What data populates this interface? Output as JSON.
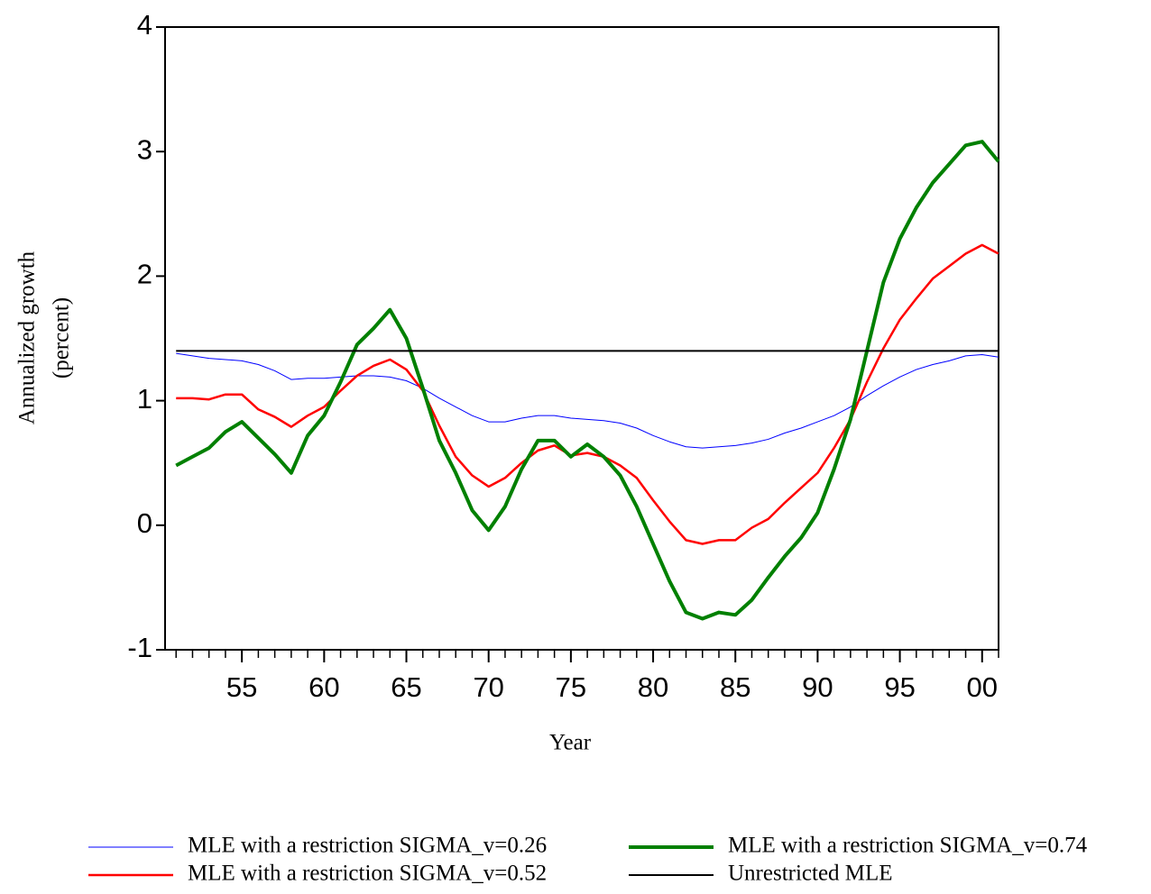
{
  "chart_data": {
    "type": "line",
    "x_label": "Year",
    "y_label": [
      "Annualized growth",
      "(percent)"
    ],
    "x": [
      1951,
      1952,
      1953,
      1954,
      1955,
      1956,
      1957,
      1958,
      1959,
      1960,
      1961,
      1962,
      1963,
      1964,
      1965,
      1966,
      1967,
      1968,
      1969,
      1970,
      1971,
      1972,
      1973,
      1974,
      1975,
      1976,
      1977,
      1978,
      1979,
      1980,
      1981,
      1982,
      1983,
      1984,
      1985,
      1986,
      1987,
      1988,
      1989,
      1990,
      1991,
      1992,
      1993,
      1994,
      1995,
      1996,
      1997,
      1998,
      1999,
      2000,
      2001
    ],
    "xlim": [
      1950.33,
      2001
    ],
    "xticks": [
      {
        "value": 1955,
        "label": "55"
      },
      {
        "value": 1960,
        "label": "60"
      },
      {
        "value": 1965,
        "label": "65"
      },
      {
        "value": 1970,
        "label": "70"
      },
      {
        "value": 1975,
        "label": "75"
      },
      {
        "value": 1980,
        "label": "80"
      },
      {
        "value": 1985,
        "label": "85"
      },
      {
        "value": 1990,
        "label": "90"
      },
      {
        "value": 1995,
        "label": "95"
      },
      {
        "value": 2000,
        "label": "00"
      }
    ],
    "ylim": [
      -1,
      4
    ],
    "yticks": [
      -1,
      0,
      1,
      2,
      3,
      4
    ],
    "series": [
      {
        "name": "MLE with a restriction SIGMA_v=0.26",
        "color": "#0000ff",
        "line_width": 1,
        "values": [
          1.38,
          1.36,
          1.34,
          1.33,
          1.32,
          1.29,
          1.24,
          1.17,
          1.18,
          1.18,
          1.19,
          1.2,
          1.2,
          1.19,
          1.16,
          1.1,
          1.02,
          0.95,
          0.88,
          0.83,
          0.83,
          0.86,
          0.88,
          0.88,
          0.86,
          0.85,
          0.84,
          0.82,
          0.78,
          0.72,
          0.67,
          0.63,
          0.62,
          0.63,
          0.64,
          0.66,
          0.69,
          0.74,
          0.78,
          0.83,
          0.88,
          0.95,
          1.04,
          1.12,
          1.19,
          1.25,
          1.29,
          1.32,
          1.36,
          1.37,
          1.35
        ]
      },
      {
        "name": "MLE with a restriction SIGMA_v=0.52",
        "color": "#ff0000",
        "line_width": 2.5,
        "values": [
          1.02,
          1.02,
          1.01,
          1.05,
          1.05,
          0.93,
          0.87,
          0.79,
          0.88,
          0.95,
          1.08,
          1.2,
          1.28,
          1.33,
          1.25,
          1.08,
          0.8,
          0.55,
          0.4,
          0.31,
          0.38,
          0.5,
          0.6,
          0.64,
          0.56,
          0.58,
          0.55,
          0.48,
          0.38,
          0.2,
          0.03,
          -0.12,
          -0.15,
          -0.12,
          -0.12,
          -0.02,
          0.05,
          0.18,
          0.3,
          0.42,
          0.62,
          0.85,
          1.15,
          1.42,
          1.65,
          1.82,
          1.98,
          2.08,
          2.18,
          2.25,
          2.18
        ]
      },
      {
        "name": "MLE with a restriction SIGMA_v=0.74",
        "color": "#008000",
        "line_width": 4,
        "values": [
          0.48,
          0.55,
          0.62,
          0.75,
          0.83,
          0.7,
          0.57,
          0.42,
          0.72,
          0.88,
          1.15,
          1.45,
          1.58,
          1.73,
          1.5,
          1.1,
          0.68,
          0.42,
          0.12,
          -0.04,
          0.15,
          0.45,
          0.68,
          0.68,
          0.55,
          0.65,
          0.55,
          0.4,
          0.15,
          -0.15,
          -0.45,
          -0.7,
          -0.75,
          -0.7,
          -0.72,
          -0.6,
          -0.42,
          -0.25,
          -0.1,
          0.1,
          0.45,
          0.85,
          1.4,
          1.95,
          2.3,
          2.55,
          2.75,
          2.9,
          3.05,
          3.08,
          2.92
        ]
      },
      {
        "name": "Unrestricted MLE",
        "color": "#000000",
        "line_width": 2,
        "values": [
          1.4,
          1.4,
          1.4,
          1.4,
          1.4,
          1.4,
          1.4,
          1.4,
          1.4,
          1.4,
          1.4,
          1.4,
          1.4,
          1.4,
          1.4,
          1.4,
          1.4,
          1.4,
          1.4,
          1.4,
          1.4,
          1.4,
          1.4,
          1.4,
          1.4,
          1.4,
          1.4,
          1.4,
          1.4,
          1.4,
          1.4,
          1.4,
          1.4,
          1.4,
          1.4,
          1.4,
          1.4,
          1.4,
          1.4,
          1.4,
          1.4,
          1.4,
          1.4,
          1.4,
          1.4,
          1.4,
          1.4,
          1.4,
          1.4,
          1.4,
          1.4
        ]
      }
    ]
  }
}
